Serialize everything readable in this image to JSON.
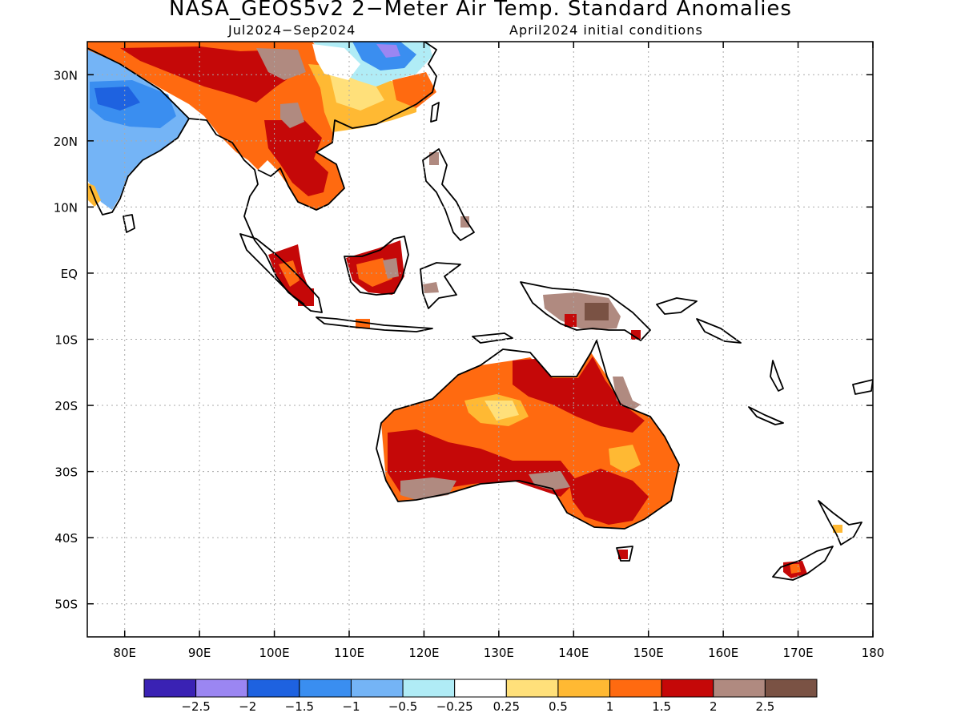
{
  "title": "NASA_GEOS5v2 2−Meter Air Temp. Standard Anomalies",
  "subtitle_left": "Jul2024−Sep2024",
  "subtitle_right": "April2024 initial conditions",
  "map": {
    "lat_labels": [
      {
        "lat": 30,
        "text": "30N"
      },
      {
        "lat": 20,
        "text": "20N"
      },
      {
        "lat": 10,
        "text": "10N"
      },
      {
        "lat": 0,
        "text": "EQ"
      },
      {
        "lat": -10,
        "text": "10S"
      },
      {
        "lat": -20,
        "text": "20S"
      },
      {
        "lat": -30,
        "text": "30S"
      },
      {
        "lat": -40,
        "text": "40S"
      },
      {
        "lat": -50,
        "text": "50S"
      }
    ],
    "lon_labels": [
      {
        "lon": 80,
        "text": "80E"
      },
      {
        "lon": 90,
        "text": "90E"
      },
      {
        "lon": 100,
        "text": "100E"
      },
      {
        "lon": 110,
        "text": "110E"
      },
      {
        "lon": 120,
        "text": "120E"
      },
      {
        "lon": 130,
        "text": "130E"
      },
      {
        "lon": 140,
        "text": "140E"
      },
      {
        "lon": 150,
        "text": "150E"
      },
      {
        "lon": 160,
        "text": "160E"
      },
      {
        "lon": 170,
        "text": "170E"
      },
      {
        "lon": 180,
        "text": "180"
      }
    ]
  },
  "colorbar": {
    "colors": [
      "#3a22b4",
      "#9b86f2",
      "#1e62e0",
      "#3a8ef0",
      "#74b4f6",
      "#b0ecf6",
      "#ffffff",
      "#ffe07a",
      "#ffb933",
      "#ff6a10",
      "#c50808",
      "#b08a80",
      "#7a5244"
    ],
    "labels": [
      "−2.5",
      "−2",
      "−1.5",
      "−1",
      "−0.5",
      "−0.25",
      "0.25",
      "0.5",
      "1",
      "1.5",
      "2",
      "2.5"
    ]
  }
}
